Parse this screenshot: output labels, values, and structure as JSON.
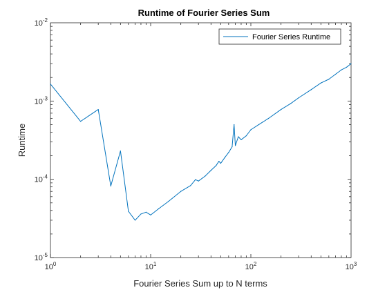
{
  "chart_data": {
    "type": "line",
    "title": "Runtime of Fourier Series Sum",
    "xlabel": "Fourier Series Sum up to N terms",
    "ylabel": "Runtime",
    "xscale": "log",
    "yscale": "log",
    "xlim": [
      1,
      1000
    ],
    "ylim": [
      1e-05,
      0.01
    ],
    "x_ticks": [
      {
        "value": 1,
        "base": "10",
        "exp": "0"
      },
      {
        "value": 10,
        "base": "10",
        "exp": "1"
      },
      {
        "value": 100,
        "base": "10",
        "exp": "2"
      },
      {
        "value": 1000,
        "base": "10",
        "exp": "3"
      }
    ],
    "y_ticks": [
      {
        "value": 1e-05,
        "base": "10",
        "exp": "-5"
      },
      {
        "value": 0.0001,
        "base": "10",
        "exp": "-4"
      },
      {
        "value": 0.001,
        "base": "10",
        "exp": "-3"
      },
      {
        "value": 0.01,
        "base": "10",
        "exp": "-2"
      }
    ],
    "grid": false,
    "legend_position": "top-right",
    "series": [
      {
        "name": "Fourier Series Runtime",
        "color": "#0072BD",
        "x": [
          1,
          2,
          3,
          4,
          5,
          6,
          7,
          8,
          9,
          10,
          12,
          15,
          20,
          25,
          28,
          30,
          35,
          40,
          45,
          48,
          50,
          55,
          60,
          65,
          68,
          70,
          75,
          80,
          90,
          100,
          120,
          150,
          200,
          250,
          300,
          400,
          500,
          600,
          700,
          800,
          900,
          1000
        ],
        "y": [
          0.00165,
          0.00055,
          0.00078,
          8.2e-05,
          0.00023,
          3.9e-05,
          3e-05,
          3.6e-05,
          3.8e-05,
          3.5e-05,
          4.2e-05,
          5.2e-05,
          7e-05,
          8.3e-05,
          9.9e-05,
          9.5e-05,
          0.00011,
          0.00013,
          0.00015,
          0.00017,
          0.00016,
          0.00019,
          0.00022,
          0.00026,
          0.0005,
          0.00027,
          0.00035,
          0.00032,
          0.00036,
          0.00043,
          0.0005,
          0.0006,
          0.00078,
          0.00093,
          0.0011,
          0.0014,
          0.0017,
          0.0019,
          0.0022,
          0.0025,
          0.0027,
          0.003
        ]
      }
    ]
  }
}
